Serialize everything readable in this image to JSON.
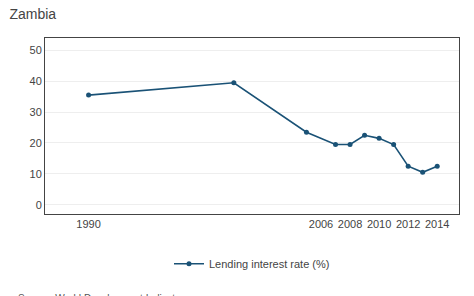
{
  "chart_data": {
    "type": "line",
    "title": "Zambia",
    "x": [
      1990,
      2000,
      2005,
      2007,
      2008,
      2009,
      2010,
      2011,
      2012,
      2013,
      2014
    ],
    "series": [
      {
        "name": "Lending interest rate (%)",
        "color": "#1a5276",
        "marker": "circle",
        "values": [
          35.5,
          39.5,
          23.5,
          19.5,
          19.5,
          22.5,
          21.5,
          19.5,
          12.5,
          10.5,
          12.5
        ]
      }
    ],
    "xlim": [
      1987,
      2015.5
    ],
    "xticks": [
      1990,
      2006,
      2008,
      2010,
      2012,
      2014
    ],
    "ylim": [
      -3,
      54
    ],
    "yticks": [
      0,
      10,
      20,
      30,
      40,
      50
    ],
    "grid": "y",
    "legend": "bottom",
    "annotations": [
      "Source: World Development Indicators"
    ]
  }
}
